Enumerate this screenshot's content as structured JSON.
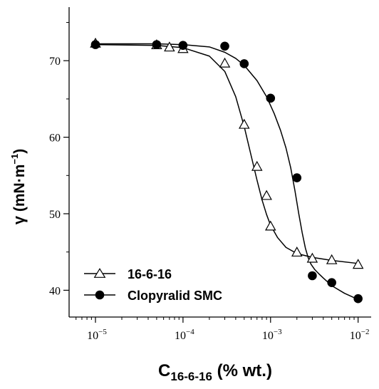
{
  "chart_data": {
    "type": "scatter",
    "x_scale": "log",
    "xlim": [
      5e-06,
      0.0141
    ],
    "ylim": [
      36.5,
      77
    ],
    "x_major_ticks": [
      1e-05,
      0.0001,
      0.001,
      0.01
    ],
    "x_tick_labels": [
      {
        "base": "10",
        "exp": "−5"
      },
      {
        "base": "10",
        "exp": "−4"
      },
      {
        "base": "10",
        "exp": "−3"
      },
      {
        "base": "10",
        "exp": "−2"
      }
    ],
    "y_major_ticks": [
      40,
      50,
      60,
      70
    ],
    "y_tick_labels": [
      "40",
      "50",
      "60",
      "70"
    ],
    "y_minor_ticks": [
      45,
      55,
      65,
      75
    ],
    "xlabel": {
      "main": "C",
      "sub": "16-6-16",
      "rest": " (% wt.)"
    },
    "ylabel": {
      "symbol": "γ",
      "rest": " (mN·m",
      "sup": "−1",
      "close": ")"
    },
    "legend_position": "bottom-left",
    "series": [
      {
        "name": "16-6-16",
        "marker": "open-triangle",
        "color": "#000000",
        "x": [
          1e-05,
          5e-05,
          7e-05,
          0.0001,
          0.0003,
          0.0005,
          0.0007,
          0.0009,
          0.001,
          0.002,
          0.003,
          0.005,
          0.01
        ],
        "y": [
          72.2,
          72.0,
          71.7,
          71.5,
          69.6,
          61.6,
          56.1,
          52.3,
          48.3,
          44.9,
          44.1,
          43.9,
          43.3
        ],
        "fit_x": [
          1e-05,
          5e-05,
          0.0001,
          0.0002,
          0.0003,
          0.0004,
          0.0005,
          0.0006,
          0.0007,
          0.0008,
          0.0009,
          0.001,
          0.0012,
          0.0015,
          0.002,
          0.003,
          0.005,
          0.01
        ],
        "fit_y": [
          72.1,
          72.0,
          71.7,
          70.6,
          68.6,
          65.3,
          61.4,
          57.6,
          54.4,
          51.8,
          49.9,
          48.5,
          46.9,
          45.6,
          44.8,
          44.3,
          43.9,
          43.5
        ]
      },
      {
        "name": "Clopyralid SMC",
        "marker": "filled-circle",
        "color": "#000000",
        "x": [
          1e-05,
          5e-05,
          0.0001,
          0.0003,
          0.0005,
          0.001,
          0.002,
          0.003,
          0.005,
          0.01
        ],
        "y": [
          72.1,
          72.1,
          72.0,
          71.9,
          69.6,
          65.1,
          54.7,
          41.9,
          41.0,
          38.9
        ],
        "fit_x": [
          1e-05,
          5e-05,
          0.0001,
          0.0002,
          0.0003,
          0.0004,
          0.0005,
          0.0007,
          0.0009,
          0.0011,
          0.0013,
          0.0015,
          0.0017,
          0.0019,
          0.0021,
          0.0023,
          0.0025,
          0.0027,
          0.0029,
          0.0032,
          0.0036,
          0.004,
          0.005,
          0.007,
          0.01
        ],
        "fit_y": [
          72.2,
          72.2,
          72.1,
          71.8,
          71.1,
          70.3,
          69.4,
          67.4,
          65.3,
          63.1,
          60.9,
          58.6,
          56.0,
          53.0,
          50.0,
          47.5,
          45.5,
          44.2,
          43.4,
          42.7,
          42.1,
          41.6,
          40.6,
          39.6,
          38.8
        ]
      }
    ]
  }
}
